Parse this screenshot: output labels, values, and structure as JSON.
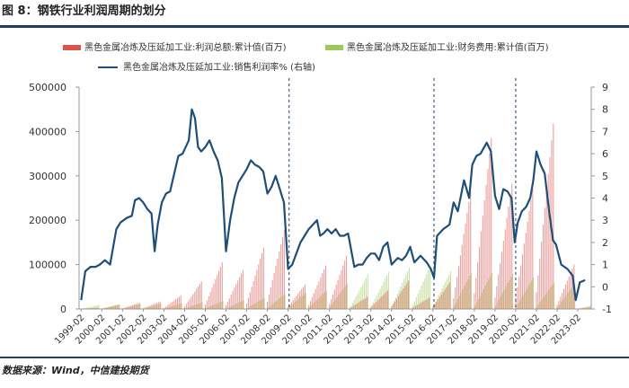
{
  "title": "图 8：钢铁行业利润周期的划分",
  "source": "数据来源：Wind，中信建投期货",
  "colors": {
    "profit": "#d9534f",
    "finance": "#9bc85a",
    "margin": "#1f4e79",
    "accent": "#1f3e66"
  },
  "chart_data": {
    "type": "bar",
    "legend": [
      "黑色金属冶炼及压延加工业:利润总额:累计值(百万)",
      "黑色金属冶炼及压延加工业:财务费用:累计值(百万)",
      "黑色金属冶炼及压延加工业:销售利润率%  (右轴)"
    ],
    "x_tick_labels": [
      "1999-02",
      "2000-02",
      "2001-02",
      "2002-02",
      "2003-02",
      "2004-02",
      "2005-02",
      "2006-02",
      "2007-02",
      "2008-02",
      "2009-02",
      "2010-02",
      "2011-02",
      "2012-02",
      "2013-02",
      "2014-02",
      "2015-02",
      "2016-02",
      "2017-02",
      "2018-02",
      "2019-02",
      "2020-02",
      "2021-02",
      "2022-02",
      "2023-02"
    ],
    "x_range": [
      1999.0,
      2023.75
    ],
    "y_left": {
      "ticks": [
        0,
        100000,
        200000,
        300000,
        400000,
        500000
      ],
      "ylim": [
        0,
        500000
      ]
    },
    "y_right": {
      "ticks": [
        -1,
        0,
        1,
        2,
        3,
        4,
        5,
        6,
        7,
        8,
        9
      ],
      "ylim": [
        -1,
        9
      ]
    },
    "cycle_dividers_x": [
      2009.15,
      2016.15,
      2020.1
    ],
    "series": [
      {
        "name": "黑色金属冶炼及压延加工业:利润总额:累计值(百万)",
        "kind": "bar",
        "annual_peak": [
          [
            1999,
            3000
          ],
          [
            2000,
            10000
          ],
          [
            2001,
            14000
          ],
          [
            2002,
            17000
          ],
          [
            2003,
            30000
          ],
          [
            2004,
            62000
          ],
          [
            2005,
            105000
          ],
          [
            2006,
            88000
          ],
          [
            2007,
            138000
          ],
          [
            2008,
            178000
          ],
          [
            2009,
            55000
          ],
          [
            2010,
            98000
          ],
          [
            2011,
            120000
          ],
          [
            2012,
            27000
          ],
          [
            2013,
            42000
          ],
          [
            2014,
            64000
          ],
          [
            2015,
            25000
          ],
          [
            2016,
            60000
          ],
          [
            2017,
            265000
          ],
          [
            2018,
            385000
          ],
          [
            2019,
            282000
          ],
          [
            2020,
            270000
          ],
          [
            2021,
            418000
          ],
          [
            2022,
            100000
          ],
          [
            2023,
            6000
          ]
        ]
      },
      {
        "name": "黑色金属冶炼及压延加工业:财务费用:累计值(百万)",
        "kind": "bar",
        "annual_peak": [
          [
            1999,
            9000
          ],
          [
            2000,
            10000
          ],
          [
            2001,
            11000
          ],
          [
            2002,
            12000
          ],
          [
            2003,
            13000
          ],
          [
            2004,
            15000
          ],
          [
            2005,
            18000
          ],
          [
            2006,
            20000
          ],
          [
            2007,
            25000
          ],
          [
            2008,
            34000
          ],
          [
            2009,
            37000
          ],
          [
            2010,
            42000
          ],
          [
            2011,
            58000
          ],
          [
            2012,
            77000
          ],
          [
            2013,
            83000
          ],
          [
            2014,
            93000
          ],
          [
            2015,
            96000
          ],
          [
            2016,
            85000
          ],
          [
            2017,
            82000
          ],
          [
            2018,
            82000
          ],
          [
            2019,
            80000
          ],
          [
            2020,
            70000
          ],
          [
            2021,
            60000
          ],
          [
            2022,
            57000
          ],
          [
            2023,
            10000
          ]
        ]
      },
      {
        "name": "黑色金属冶炼及压延加工业:销售利润率%  (右轴)",
        "kind": "line",
        "axis": "right",
        "points": [
          [
            1999.1,
            -0.6
          ],
          [
            1999.3,
            0.7
          ],
          [
            1999.55,
            0.9
          ],
          [
            1999.8,
            0.9
          ],
          [
            2000.0,
            1.0
          ],
          [
            2000.25,
            1.2
          ],
          [
            2000.5,
            1.0
          ],
          [
            2000.8,
            2.6
          ],
          [
            2001.0,
            2.9
          ],
          [
            2001.3,
            3.1
          ],
          [
            2001.55,
            3.2
          ],
          [
            2001.7,
            3.9
          ],
          [
            2001.9,
            4.0
          ],
          [
            2002.1,
            3.8
          ],
          [
            2002.3,
            3.5
          ],
          [
            2002.5,
            3.3
          ],
          [
            2002.65,
            1.6
          ],
          [
            2002.8,
            2.8
          ],
          [
            2003.0,
            3.8
          ],
          [
            2003.2,
            4.2
          ],
          [
            2003.4,
            4.3
          ],
          [
            2003.6,
            5.1
          ],
          [
            2003.8,
            5.9
          ],
          [
            2004.0,
            6.0
          ],
          [
            2004.1,
            6.2
          ],
          [
            2004.3,
            6.6
          ],
          [
            2004.45,
            8.0
          ],
          [
            2004.6,
            7.6
          ],
          [
            2004.75,
            6.3
          ],
          [
            2004.9,
            6.1
          ],
          [
            2005.1,
            6.3
          ],
          [
            2005.3,
            6.6
          ],
          [
            2005.5,
            6.1
          ],
          [
            2005.7,
            5.7
          ],
          [
            2005.9,
            4.9
          ],
          [
            2006.1,
            1.6
          ],
          [
            2006.3,
            3.0
          ],
          [
            2006.5,
            4.0
          ],
          [
            2006.7,
            4.7
          ],
          [
            2006.9,
            5.0
          ],
          [
            2007.1,
            5.3
          ],
          [
            2007.3,
            5.7
          ],
          [
            2007.5,
            5.5
          ],
          [
            2007.7,
            5.4
          ],
          [
            2007.9,
            5.2
          ],
          [
            2008.1,
            4.2
          ],
          [
            2008.3,
            4.5
          ],
          [
            2008.5,
            5.0
          ],
          [
            2008.7,
            4.4
          ],
          [
            2008.9,
            3.8
          ],
          [
            2009.1,
            0.8
          ],
          [
            2009.3,
            1.0
          ],
          [
            2009.5,
            1.5
          ],
          [
            2009.7,
            2.0
          ],
          [
            2009.9,
            2.3
          ],
          [
            2010.1,
            2.6
          ],
          [
            2010.3,
            2.8
          ],
          [
            2010.5,
            3.0
          ],
          [
            2010.65,
            2.3
          ],
          [
            2010.8,
            2.4
          ],
          [
            2011.0,
            2.6
          ],
          [
            2011.2,
            2.4
          ],
          [
            2011.4,
            2.6
          ],
          [
            2011.6,
            2.3
          ],
          [
            2011.8,
            2.3
          ],
          [
            2012.0,
            2.4
          ],
          [
            2012.3,
            0.9
          ],
          [
            2012.5,
            1.0
          ],
          [
            2012.7,
            1.0
          ],
          [
            2012.9,
            1.3
          ],
          [
            2013.1,
            1.5
          ],
          [
            2013.3,
            1.5
          ],
          [
            2013.5,
            1.2
          ],
          [
            2013.7,
            1.8
          ],
          [
            2013.9,
            2.0
          ],
          [
            2014.1,
            1.0
          ],
          [
            2014.4,
            1.3
          ],
          [
            2014.6,
            1.2
          ],
          [
            2014.8,
            1.4
          ],
          [
            2015.0,
            1.8
          ],
          [
            2015.2,
            1.1
          ],
          [
            2015.5,
            1.4
          ],
          [
            2015.8,
            1.1
          ],
          [
            2016.0,
            0.8
          ],
          [
            2016.15,
            0.4
          ],
          [
            2016.3,
            2.3
          ],
          [
            2016.6,
            2.6
          ],
          [
            2016.9,
            2.8
          ],
          [
            2017.1,
            3.8
          ],
          [
            2017.3,
            3.4
          ],
          [
            2017.6,
            4.8
          ],
          [
            2017.85,
            4.0
          ],
          [
            2018.0,
            5.5
          ],
          [
            2018.2,
            5.9
          ],
          [
            2018.4,
            6.0
          ],
          [
            2018.7,
            6.5
          ],
          [
            2018.9,
            6.1
          ],
          [
            2019.1,
            4.1
          ],
          [
            2019.3,
            3.5
          ],
          [
            2019.5,
            4.4
          ],
          [
            2019.7,
            4.3
          ],
          [
            2019.9,
            4.0
          ],
          [
            2020.05,
            2.0
          ],
          [
            2020.2,
            2.9
          ],
          [
            2020.4,
            3.4
          ],
          [
            2020.6,
            3.6
          ],
          [
            2020.8,
            4.0
          ],
          [
            2020.95,
            4.8
          ],
          [
            2021.1,
            6.1
          ],
          [
            2021.3,
            5.5
          ],
          [
            2021.5,
            5.1
          ],
          [
            2021.7,
            3.5
          ],
          [
            2021.9,
            2.1
          ],
          [
            2022.05,
            1.9
          ],
          [
            2022.3,
            1.0
          ],
          [
            2022.6,
            0.8
          ],
          [
            2022.85,
            0.5
          ],
          [
            2023.0,
            -0.6
          ],
          [
            2023.2,
            0.2
          ],
          [
            2023.45,
            0.3
          ]
        ]
      }
    ]
  }
}
